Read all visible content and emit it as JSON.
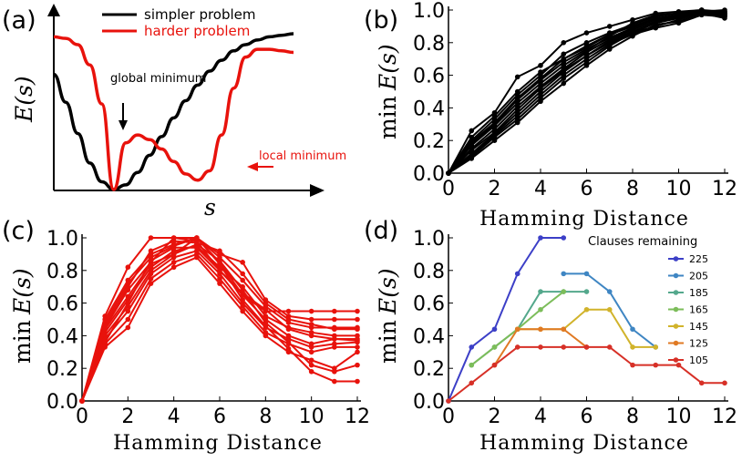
{
  "chart_data": [
    {
      "panel": "(a)",
      "type": "line",
      "ylabel": "E(s)",
      "xlabel": "s",
      "series": [
        {
          "name": "simpler problem",
          "color": "#000000",
          "x": [
            0.0,
            0.05,
            0.1,
            0.15,
            0.2,
            0.25,
            0.3,
            0.35,
            0.4,
            0.45,
            0.5,
            0.55,
            0.6,
            0.65,
            0.7,
            0.75,
            0.8,
            0.85,
            0.9,
            0.95,
            1.0
          ],
          "y": [
            0.74,
            0.56,
            0.36,
            0.17,
            0.05,
            0.0,
            0.03,
            0.11,
            0.22,
            0.34,
            0.46,
            0.57,
            0.67,
            0.76,
            0.83,
            0.89,
            0.93,
            0.96,
            0.98,
            0.99,
            1.0
          ]
        },
        {
          "name": "harder problem",
          "color": "#e8120c",
          "x": [
            0.0,
            0.05,
            0.1,
            0.15,
            0.2,
            0.25,
            0.3,
            0.35,
            0.4,
            0.45,
            0.5,
            0.55,
            0.6,
            0.65,
            0.7,
            0.75,
            0.8,
            0.85,
            0.9,
            0.95,
            1.0
          ],
          "y": [
            0.98,
            0.97,
            0.93,
            0.8,
            0.55,
            0.0,
            0.3,
            0.35,
            0.32,
            0.26,
            0.18,
            0.1,
            0.06,
            0.12,
            0.35,
            0.65,
            0.85,
            0.9,
            0.9,
            0.89,
            0.88
          ]
        }
      ],
      "annotations": [
        {
          "text": "global minimum",
          "color": "#000000"
        },
        {
          "text": "local minimum",
          "color": "#e8120c"
        }
      ]
    },
    {
      "panel": "(b)",
      "type": "line",
      "xlabel": "Hamming Distance",
      "ylabel": "min E(s)",
      "xlim": [
        0,
        12
      ],
      "ylim": [
        0,
        1.0
      ],
      "xticks": [
        "0",
        "2",
        "4",
        "6",
        "8",
        "10",
        "12"
      ],
      "yticks": [
        "0.0",
        "0.2",
        "0.4",
        "0.6",
        "0.8",
        "1.0"
      ],
      "color": "#000000",
      "series": [
        {
          "x": [
            0,
            1,
            2,
            3,
            4,
            5,
            6,
            7,
            8,
            9,
            10,
            11,
            12
          ],
          "y": [
            0,
            0.26,
            0.37,
            0.59,
            0.66,
            0.8,
            0.86,
            0.9,
            0.94,
            0.98,
            0.99,
            1.0,
            0.98
          ]
        },
        {
          "x": [
            0,
            1,
            2,
            3,
            4,
            5,
            6,
            7,
            8,
            9,
            10,
            11,
            12
          ],
          "y": [
            0,
            0.2,
            0.33,
            0.48,
            0.6,
            0.73,
            0.8,
            0.86,
            0.91,
            0.96,
            0.98,
            1.0,
            0.97
          ]
        },
        {
          "x": [
            0,
            1,
            2,
            3,
            4,
            5,
            6,
            7,
            8,
            9,
            10,
            11,
            12
          ],
          "y": [
            0,
            0.18,
            0.3,
            0.45,
            0.57,
            0.68,
            0.76,
            0.83,
            0.89,
            0.94,
            0.97,
            0.99,
            0.99
          ]
        },
        {
          "x": [
            0,
            1,
            2,
            3,
            4,
            5,
            6,
            7,
            8,
            9,
            10,
            11,
            12
          ],
          "y": [
            0,
            0.15,
            0.27,
            0.41,
            0.53,
            0.64,
            0.74,
            0.82,
            0.88,
            0.93,
            0.96,
            0.98,
            0.97
          ]
        },
        {
          "x": [
            0,
            1,
            2,
            3,
            4,
            5,
            6,
            7,
            8,
            9,
            10,
            11,
            12
          ],
          "y": [
            0,
            0.12,
            0.24,
            0.37,
            0.5,
            0.62,
            0.72,
            0.81,
            0.87,
            0.92,
            0.95,
            0.98,
            0.96
          ]
        },
        {
          "x": [
            0,
            1,
            2,
            3,
            4,
            5,
            6,
            7,
            8,
            9,
            10,
            11,
            12
          ],
          "y": [
            0,
            0.1,
            0.22,
            0.33,
            0.46,
            0.58,
            0.68,
            0.78,
            0.86,
            0.9,
            0.94,
            0.99,
            0.97
          ]
        },
        {
          "x": [
            0,
            1,
            2,
            3,
            4,
            5,
            6,
            7,
            8,
            9,
            10,
            11,
            12
          ],
          "y": [
            0,
            0.09,
            0.2,
            0.31,
            0.44,
            0.55,
            0.66,
            0.76,
            0.84,
            0.91,
            0.93,
            0.98,
            0.95
          ]
        },
        {
          "x": [
            0,
            1,
            2,
            3,
            4,
            5,
            6,
            7,
            8,
            9,
            10,
            11,
            12
          ],
          "y": [
            0,
            0.14,
            0.25,
            0.39,
            0.52,
            0.63,
            0.72,
            0.8,
            0.86,
            0.92,
            0.96,
            0.99,
            0.98
          ]
        },
        {
          "x": [
            0,
            1,
            2,
            3,
            4,
            5,
            6,
            7,
            8,
            9,
            10,
            11,
            12
          ],
          "y": [
            0,
            0.22,
            0.35,
            0.5,
            0.62,
            0.7,
            0.77,
            0.85,
            0.9,
            0.95,
            0.97,
            1.0,
            0.99
          ]
        },
        {
          "x": [
            0,
            1,
            2,
            3,
            4,
            5,
            6,
            7,
            8,
            9,
            10,
            11,
            12
          ],
          "y": [
            0,
            0.17,
            0.29,
            0.43,
            0.55,
            0.66,
            0.75,
            0.84,
            0.92,
            0.97,
            0.98,
            1.0,
            0.98
          ]
        },
        {
          "x": [
            0,
            1,
            2,
            3,
            4,
            5,
            6,
            7,
            8,
            9,
            10,
            11,
            12
          ],
          "y": [
            0,
            0.11,
            0.23,
            0.35,
            0.48,
            0.6,
            0.7,
            0.79,
            0.85,
            0.89,
            0.92,
            0.97,
            0.96
          ]
        },
        {
          "x": [
            0,
            1,
            2,
            3,
            4,
            5,
            6,
            7,
            8,
            9,
            10,
            11,
            12
          ],
          "y": [
            0,
            0.19,
            0.31,
            0.46,
            0.58,
            0.7,
            0.78,
            0.85,
            0.9,
            0.94,
            0.97,
            0.99,
            1.0
          ]
        }
      ]
    },
    {
      "panel": "(c)",
      "type": "line",
      "xlabel": "Hamming Distance",
      "ylabel": "min E(s)",
      "xlim": [
        0,
        12
      ],
      "ylim": [
        0,
        1.0
      ],
      "xticks": [
        "0",
        "2",
        "4",
        "6",
        "8",
        "10",
        "12"
      ],
      "yticks": [
        "0.0",
        "0.2",
        "0.4",
        "0.6",
        "0.8",
        "1.0"
      ],
      "color": "#e8120c",
      "series": [
        {
          "x": [
            0,
            1,
            2,
            3,
            4,
            5,
            6,
            7,
            8,
            9,
            10,
            11,
            12
          ],
          "y": [
            0,
            0.52,
            0.82,
            1.0,
            1.0,
            0.98,
            0.8,
            0.65,
            0.55,
            0.55,
            0.55,
            0.55,
            0.55
          ]
        },
        {
          "x": [
            0,
            1,
            2,
            3,
            4,
            5,
            6,
            7,
            8,
            9,
            10,
            11,
            12
          ],
          "y": [
            0,
            0.48,
            0.72,
            0.88,
            0.95,
            1.0,
            0.9,
            0.85,
            0.62,
            0.52,
            0.5,
            0.5,
            0.5
          ]
        },
        {
          "x": [
            0,
            1,
            2,
            3,
            4,
            5,
            6,
            7,
            8,
            9,
            10,
            11,
            12
          ],
          "y": [
            0,
            0.45,
            0.68,
            0.85,
            1.0,
            1.0,
            0.88,
            0.74,
            0.58,
            0.48,
            0.45,
            0.45,
            0.45
          ]
        },
        {
          "x": [
            0,
            1,
            2,
            3,
            4,
            5,
            6,
            7,
            8,
            9,
            10,
            11,
            12
          ],
          "y": [
            0,
            0.42,
            0.62,
            0.82,
            0.92,
            0.95,
            0.82,
            0.7,
            0.52,
            0.45,
            0.42,
            0.4,
            0.4
          ]
        },
        {
          "x": [
            0,
            1,
            2,
            3,
            4,
            5,
            6,
            7,
            8,
            9,
            10,
            11,
            12
          ],
          "y": [
            0,
            0.4,
            0.58,
            0.8,
            0.9,
            1.0,
            0.85,
            0.65,
            0.5,
            0.4,
            0.35,
            0.38,
            0.38
          ]
        },
        {
          "x": [
            0,
            1,
            2,
            3,
            4,
            5,
            6,
            7,
            8,
            9,
            10,
            11,
            12
          ],
          "y": [
            0,
            0.38,
            0.55,
            0.78,
            0.88,
            0.92,
            0.78,
            0.6,
            0.45,
            0.38,
            0.33,
            0.35,
            0.36
          ]
        },
        {
          "x": [
            0,
            1,
            2,
            3,
            4,
            5,
            6,
            7,
            8,
            9,
            10,
            11,
            12
          ],
          "y": [
            0,
            0.35,
            0.5,
            0.75,
            0.85,
            0.9,
            0.75,
            0.58,
            0.42,
            0.35,
            0.3,
            0.33,
            0.33
          ]
        },
        {
          "x": [
            0,
            1,
            2,
            3,
            4,
            5,
            6,
            7,
            8,
            9,
            10,
            11,
            12
          ],
          "y": [
            0,
            0.33,
            0.45,
            0.72,
            0.82,
            0.88,
            0.72,
            0.55,
            0.4,
            0.3,
            0.25,
            0.2,
            0.3
          ]
        },
        {
          "x": [
            0,
            1,
            2,
            3,
            4,
            5,
            6,
            7,
            8,
            9,
            10,
            11,
            12
          ],
          "y": [
            0,
            0.44,
            0.64,
            0.84,
            0.9,
            0.96,
            0.86,
            0.68,
            0.48,
            0.36,
            0.22,
            0.18,
            0.22
          ]
        },
        {
          "x": [
            0,
            1,
            2,
            3,
            4,
            5,
            6,
            7,
            8,
            9,
            10,
            11,
            12
          ],
          "y": [
            0,
            0.5,
            0.74,
            0.9,
            0.96,
            1.0,
            0.84,
            0.62,
            0.46,
            0.32,
            0.18,
            0.12,
            0.12
          ]
        },
        {
          "x": [
            0,
            1,
            2,
            3,
            4,
            5,
            6,
            7,
            8,
            9,
            10,
            11,
            12
          ],
          "y": [
            0,
            0.36,
            0.6,
            0.86,
            0.94,
            0.94,
            0.8,
            0.66,
            0.56,
            0.44,
            0.4,
            0.38,
            0.37
          ]
        },
        {
          "x": [
            0,
            1,
            2,
            3,
            4,
            5,
            6,
            7,
            8,
            9,
            10,
            11,
            12
          ],
          "y": [
            0,
            0.46,
            0.7,
            0.92,
            0.98,
            0.97,
            0.92,
            0.78,
            0.6,
            0.5,
            0.47,
            0.44,
            0.44
          ]
        }
      ]
    },
    {
      "panel": "(d)",
      "type": "line",
      "xlabel": "Hamming Distance",
      "ylabel": "min E(s)",
      "xlim": [
        0,
        12
      ],
      "ylim": [
        0,
        1.0
      ],
      "xticks": [
        "0",
        "2",
        "4",
        "6",
        "8",
        "10",
        "12"
      ],
      "yticks": [
        "0.0",
        "0.2",
        "0.4",
        "0.6",
        "0.8",
        "1.0"
      ],
      "legend_title": "Clauses remaining",
      "legend_position": "right",
      "series": [
        {
          "name": "225",
          "color": "#3c3fc7",
          "x": [
            0,
            1,
            2,
            3,
            4,
            5
          ],
          "y": [
            0,
            0.33,
            0.44,
            0.78,
            1.0,
            1.0
          ]
        },
        {
          "name": "205",
          "color": "#3f86c3",
          "x": [
            5,
            6,
            7,
            8,
            9
          ],
          "y": [
            0.78,
            0.78,
            0.67,
            0.44,
            0.33
          ]
        },
        {
          "name": "185",
          "color": "#54a88c",
          "x": [
            1,
            2,
            3,
            4,
            5,
            6
          ],
          "y": [
            0.22,
            0.33,
            0.44,
            0.67,
            0.67,
            0.67
          ]
        },
        {
          "name": "165",
          "color": "#7cbd5a",
          "x": [
            1,
            2,
            3,
            4,
            5
          ],
          "y": [
            0.22,
            0.33,
            0.44,
            0.56,
            0.67
          ]
        },
        {
          "name": "145",
          "color": "#d1b32b",
          "x": [
            3,
            4,
            5,
            6,
            7,
            8,
            9
          ],
          "y": [
            0.44,
            0.44,
            0.44,
            0.56,
            0.56,
            0.33,
            0.33
          ]
        },
        {
          "name": "125",
          "color": "#e07a24",
          "x": [
            2,
            3,
            4,
            5,
            6
          ],
          "y": [
            0.22,
            0.44,
            0.44,
            0.44,
            0.33
          ]
        },
        {
          "name": "105",
          "color": "#d73027",
          "x": [
            0,
            1,
            2,
            3,
            4,
            5,
            6,
            7,
            8,
            9,
            10,
            11,
            12
          ],
          "y": [
            0,
            0.11,
            0.22,
            0.33,
            0.33,
            0.33,
            0.33,
            0.33,
            0.22,
            0.22,
            0.22,
            0.11,
            0.11
          ]
        }
      ]
    }
  ],
  "panels": {
    "a": {
      "label": "(a)",
      "legend": [
        "simpler problem",
        "harder problem"
      ],
      "ylabel": "E(s)",
      "xlabel": "s",
      "global": "global minimum",
      "local": "local minimum"
    },
    "b": {
      "label": "(b)",
      "xlabel": "Hamming Distance",
      "ylabel_pre": "min",
      "ylabel_math": "E(s)"
    },
    "c": {
      "label": "(c)",
      "xlabel": "Hamming Distance",
      "ylabel_pre": "min",
      "ylabel_math": "E(s)"
    },
    "d": {
      "label": "(d)",
      "xlabel": "Hamming Distance",
      "ylabel_pre": "min",
      "ylabel_math": "E(s)",
      "legend_title": "Clauses remaining"
    }
  }
}
